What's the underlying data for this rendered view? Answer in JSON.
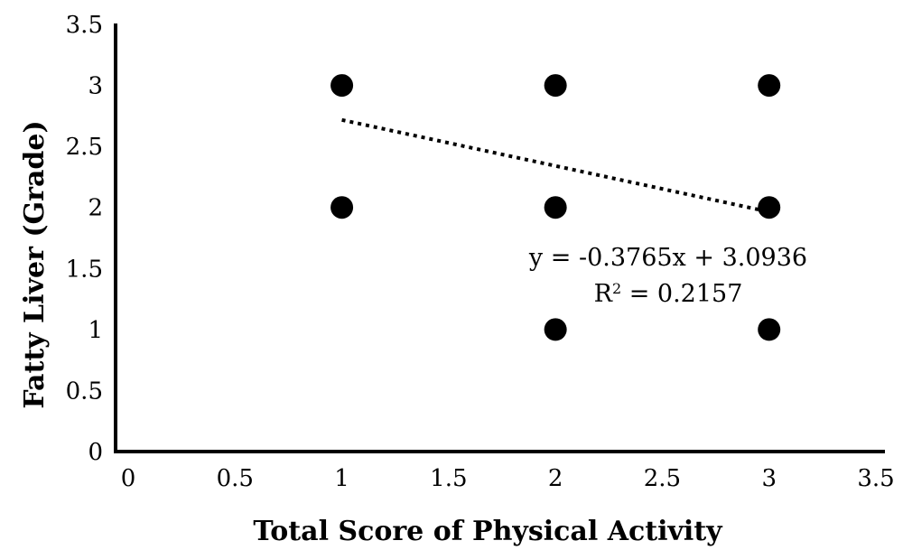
{
  "chart_data": {
    "type": "scatter",
    "xlabel": "Total Score of Physical Activity",
    "ylabel": "Fatty Liver (Grade)",
    "xlim": [
      0,
      3.5
    ],
    "ylim": [
      0,
      3.5
    ],
    "xticks": [
      "0",
      "0.5",
      "1",
      "1.5",
      "2",
      "2.5",
      "3",
      "3.5"
    ],
    "yticks": [
      "0",
      "0.5",
      "1",
      "1.5",
      "2",
      "2.5",
      "3",
      "3.5"
    ],
    "grid": false,
    "series": [
      {
        "points": [
          {
            "x": 1,
            "y": 3
          },
          {
            "x": 1,
            "y": 2
          },
          {
            "x": 2,
            "y": 3
          },
          {
            "x": 2,
            "y": 2
          },
          {
            "x": 2,
            "y": 1
          },
          {
            "x": 3,
            "y": 3
          },
          {
            "x": 3,
            "y": 2
          },
          {
            "x": 3,
            "y": 1
          }
        ]
      }
    ],
    "trendline": {
      "type": "linear",
      "style": "dotted",
      "slope": -0.3765,
      "intercept": 3.0936,
      "x_range": [
        1,
        3
      ]
    },
    "annotations": {
      "equation": "y = -0.3765x + 3.0936",
      "r_squared_prefix": "R",
      "r_squared_exponent": "2",
      "r_squared_value": " = 0.2157"
    },
    "colors": {
      "marker": "#000000",
      "axis": "#000000",
      "trendline": "#000000"
    }
  }
}
